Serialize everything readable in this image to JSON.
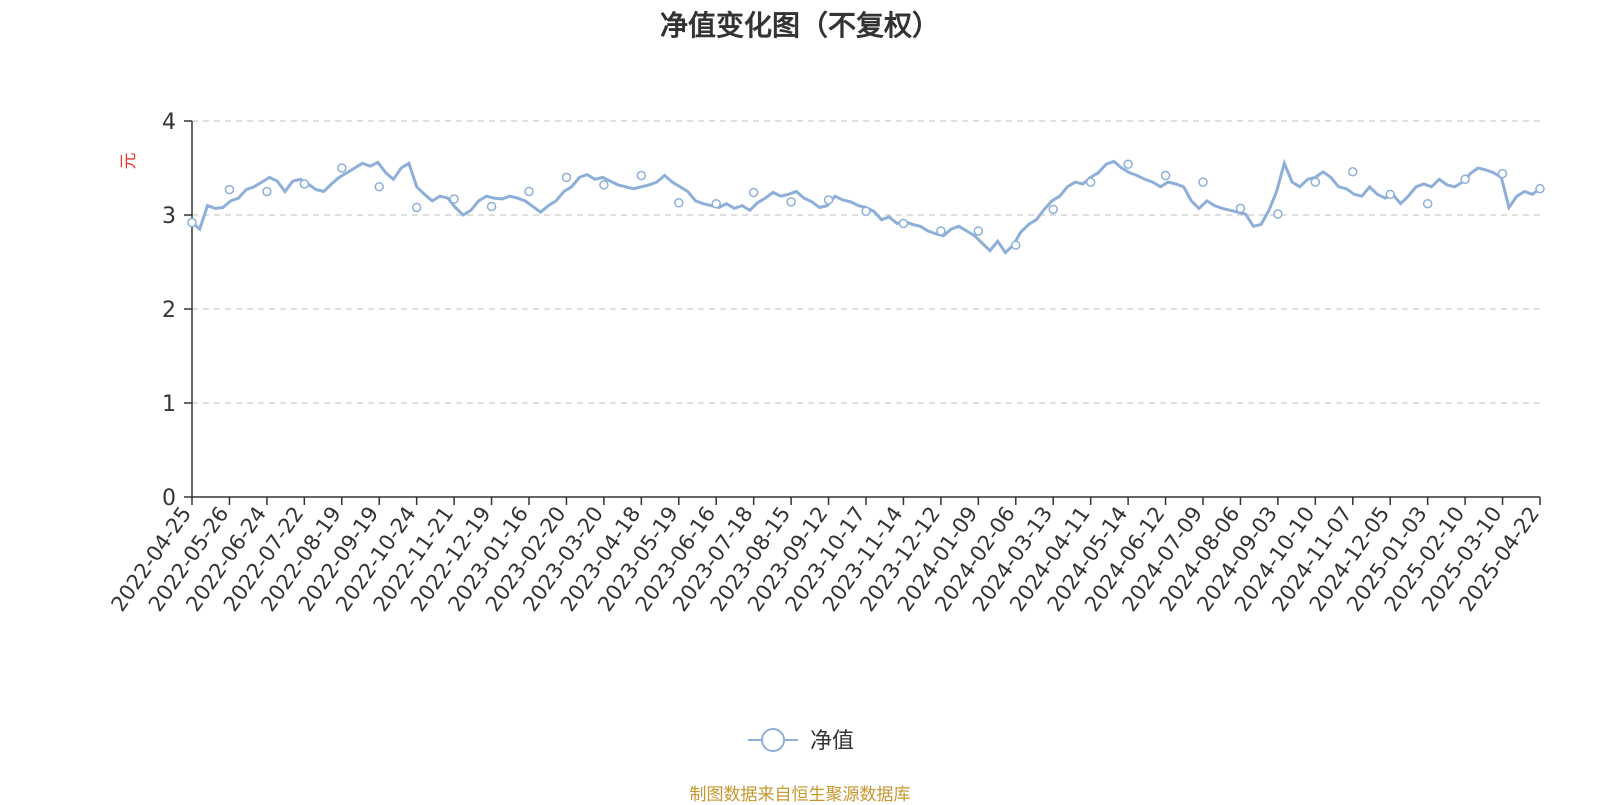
{
  "chart_data": {
    "type": "line",
    "title": "净值变化图（不复权）",
    "ylabel": "元",
    "xlabel": "",
    "ylim": [
      0,
      4
    ],
    "yticks": [
      "0",
      "1",
      "2",
      "3",
      "4"
    ],
    "grid": true,
    "legend_position": "bottom-center",
    "source_note": "制图数据来自恒生聚源数据库",
    "colors": {
      "series": "#8eafd8",
      "axis": "#333333",
      "grid": "#cccccc",
      "ylabel": "#e8382c",
      "source": "#c8962d"
    },
    "categories": [
      "2022-04-25",
      "2022-05-26",
      "2022-06-24",
      "2022-07-22",
      "2022-08-19",
      "2022-09-19",
      "2022-10-24",
      "2022-11-21",
      "2022-12-19",
      "2023-01-16",
      "2023-02-20",
      "2023-03-20",
      "2023-04-18",
      "2023-05-19",
      "2023-06-16",
      "2023-07-18",
      "2023-08-15",
      "2023-09-12",
      "2023-10-17",
      "2023-11-14",
      "2023-12-12",
      "2024-01-09",
      "2024-02-06",
      "2024-03-13",
      "2024-04-11",
      "2024-05-14",
      "2024-06-12",
      "2024-07-09",
      "2024-08-06",
      "2024-09-03",
      "2024-10-10",
      "2024-11-07",
      "2024-12-05",
      "2025-01-03",
      "2025-02-10",
      "2025-03-10",
      "2025-04-22"
    ],
    "series": [
      {
        "name": "净值",
        "values": [
          2.92,
          3.27,
          3.25,
          3.33,
          3.5,
          3.3,
          3.08,
          3.17,
          3.09,
          3.25,
          3.4,
          3.32,
          3.42,
          3.13,
          3.12,
          3.24,
          3.14,
          3.16,
          3.04,
          2.91,
          2.83,
          2.83,
          2.68,
          3.06,
          3.35,
          3.54,
          3.42,
          3.35,
          3.07,
          3.01,
          3.35,
          3.46,
          3.22,
          3.12,
          3.38,
          3.44,
          3.28
        ],
        "markers": true,
        "detail_values": [
          2.92,
          2.85,
          3.1,
          3.07,
          3.08,
          3.15,
          3.18,
          3.27,
          3.3,
          3.35,
          3.4,
          3.36,
          3.25,
          3.36,
          3.38,
          3.33,
          3.27,
          3.25,
          3.33,
          3.4,
          3.45,
          3.5,
          3.55,
          3.52,
          3.56,
          3.45,
          3.38,
          3.5,
          3.55,
          3.3,
          3.22,
          3.15,
          3.2,
          3.18,
          3.08,
          3.0,
          3.05,
          3.15,
          3.2,
          3.18,
          3.17,
          3.2,
          3.18,
          3.15,
          3.09,
          3.03,
          3.1,
          3.15,
          3.25,
          3.3,
          3.4,
          3.43,
          3.38,
          3.4,
          3.36,
          3.32,
          3.3,
          3.28,
          3.3,
          3.32,
          3.35,
          3.42,
          3.35,
          3.3,
          3.25,
          3.15,
          3.12,
          3.1,
          3.08,
          3.12,
          3.07,
          3.1,
          3.05,
          3.13,
          3.18,
          3.24,
          3.2,
          3.22,
          3.25,
          3.18,
          3.14,
          3.08,
          3.1,
          3.2,
          3.16,
          3.14,
          3.1,
          3.08,
          3.04,
          2.95,
          2.98,
          2.91,
          2.93,
          2.9,
          2.88,
          2.83,
          2.8,
          2.78,
          2.85,
          2.88,
          2.83,
          2.78,
          2.7,
          2.62,
          2.72,
          2.6,
          2.68,
          2.82,
          2.9,
          2.95,
          3.06,
          3.15,
          3.2,
          3.3,
          3.35,
          3.33,
          3.4,
          3.45,
          3.54,
          3.57,
          3.5,
          3.45,
          3.42,
          3.38,
          3.35,
          3.3,
          3.35,
          3.33,
          3.3,
          3.15,
          3.07,
          3.15,
          3.1,
          3.07,
          3.05,
          3.03,
          3.01,
          2.88,
          2.9,
          3.05,
          3.25,
          3.55,
          3.35,
          3.3,
          3.38,
          3.4,
          3.46,
          3.4,
          3.3,
          3.28,
          3.22,
          3.2,
          3.3,
          3.22,
          3.18,
          3.22,
          3.12,
          3.2,
          3.3,
          3.33,
          3.3,
          3.38,
          3.32,
          3.3,
          3.35,
          3.44,
          3.5,
          3.48,
          3.45,
          3.4,
          3.08,
          3.2,
          3.25,
          3.22,
          3.28
        ]
      }
    ]
  }
}
